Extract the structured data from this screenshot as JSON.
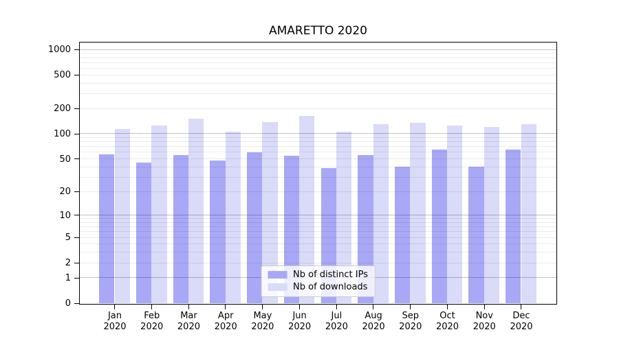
{
  "title": "AMARETTO 2020",
  "legend": {
    "items": [
      {
        "label": "Nb of distinct IPs",
        "color": "#a8a8f6"
      },
      {
        "label": "Nb of downloads",
        "color": "#dadaf9"
      }
    ]
  },
  "chart_data": {
    "type": "bar",
    "title": "AMARETTO 2020",
    "categories": [
      "Jan 2020",
      "Feb 2020",
      "Mar 2020",
      "Apr 2020",
      "May 2020",
      "Jun 2020",
      "Jul 2020",
      "Aug 2020",
      "Sep 2020",
      "Oct 2020",
      "Nov 2020",
      "Dec 2020"
    ],
    "series": [
      {
        "name": "Nb of distinct IPs",
        "color": "#a8a8f6",
        "values": [
          57,
          45,
          56,
          48,
          60,
          55,
          39,
          56,
          40,
          65,
          40,
          65
        ]
      },
      {
        "name": "Nb of downloads",
        "color": "#dadaf9",
        "values": [
          115,
          126,
          150,
          105,
          138,
          164,
          105,
          129,
          135,
          126,
          120,
          129
        ]
      }
    ],
    "xlabel": "",
    "ylabel": "",
    "yscale": "log1p",
    "ylim": [
      0,
      1210
    ],
    "yticks": [
      0,
      1,
      2,
      5,
      10,
      20,
      50,
      100,
      200,
      500,
      1000
    ],
    "grid": true,
    "legend_position": "lower center"
  },
  "colors": {
    "major_grid": "rgba(0,0,0,0.24)",
    "minor_grid": "rgba(0,0,0,0.075)",
    "spine": "#000000",
    "text": "#000000",
    "legend_border": "#cccccc",
    "legend_bg": "rgba(255,255,255,0.8)"
  }
}
